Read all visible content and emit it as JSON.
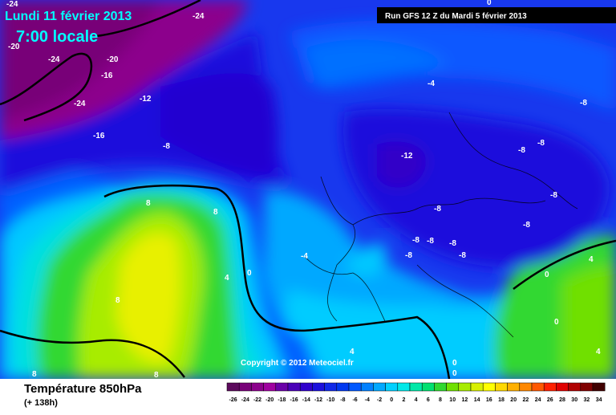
{
  "map": {
    "date": "Lundi 11 février 2013",
    "time": "7:00 locale",
    "run": "Run GFS 12 Z du Mardi 5 février 2013",
    "copyright": "Copyright © 2012 Meteociel.fr",
    "title": "Température 850hPa",
    "lead": "(+ 138h)",
    "labels": [
      -24,
      -24,
      -20,
      -24,
      -20,
      -16,
      -24,
      -12,
      -16,
      -8,
      -4,
      -8,
      -12,
      -8,
      -8,
      -8,
      -8,
      -8,
      -8,
      -8,
      -8,
      -8,
      -8,
      8,
      8,
      -4,
      4,
      0,
      8,
      4,
      0,
      0,
      4,
      4,
      0,
      0,
      8,
      8,
      0
    ]
  },
  "colorbar": {
    "levels": [
      -26,
      -24,
      -22,
      -20,
      -18,
      -16,
      -14,
      -12,
      -10,
      -8,
      -6,
      -4,
      -2,
      0,
      2,
      4,
      6,
      8,
      10,
      12,
      14,
      16,
      18,
      20,
      22,
      24,
      26,
      28,
      30,
      32,
      34
    ],
    "colors": [
      "#5c0a5c",
      "#780078",
      "#8c008c",
      "#a000a0",
      "#6a00a8",
      "#4a00b8",
      "#3000cc",
      "#1c10dc",
      "#1028e8",
      "#0038f0",
      "#0058ff",
      "#0080ff",
      "#00a8ff",
      "#00d0ff",
      "#00e8e8",
      "#00e8a8",
      "#00e070",
      "#30d830",
      "#70e000",
      "#a8ec00",
      "#d8f000",
      "#ffff00",
      "#ffd800",
      "#ffb000",
      "#ff8800",
      "#ff5800",
      "#ff2000",
      "#e00000",
      "#b00000",
      "#800000",
      "#400000"
    ]
  }
}
